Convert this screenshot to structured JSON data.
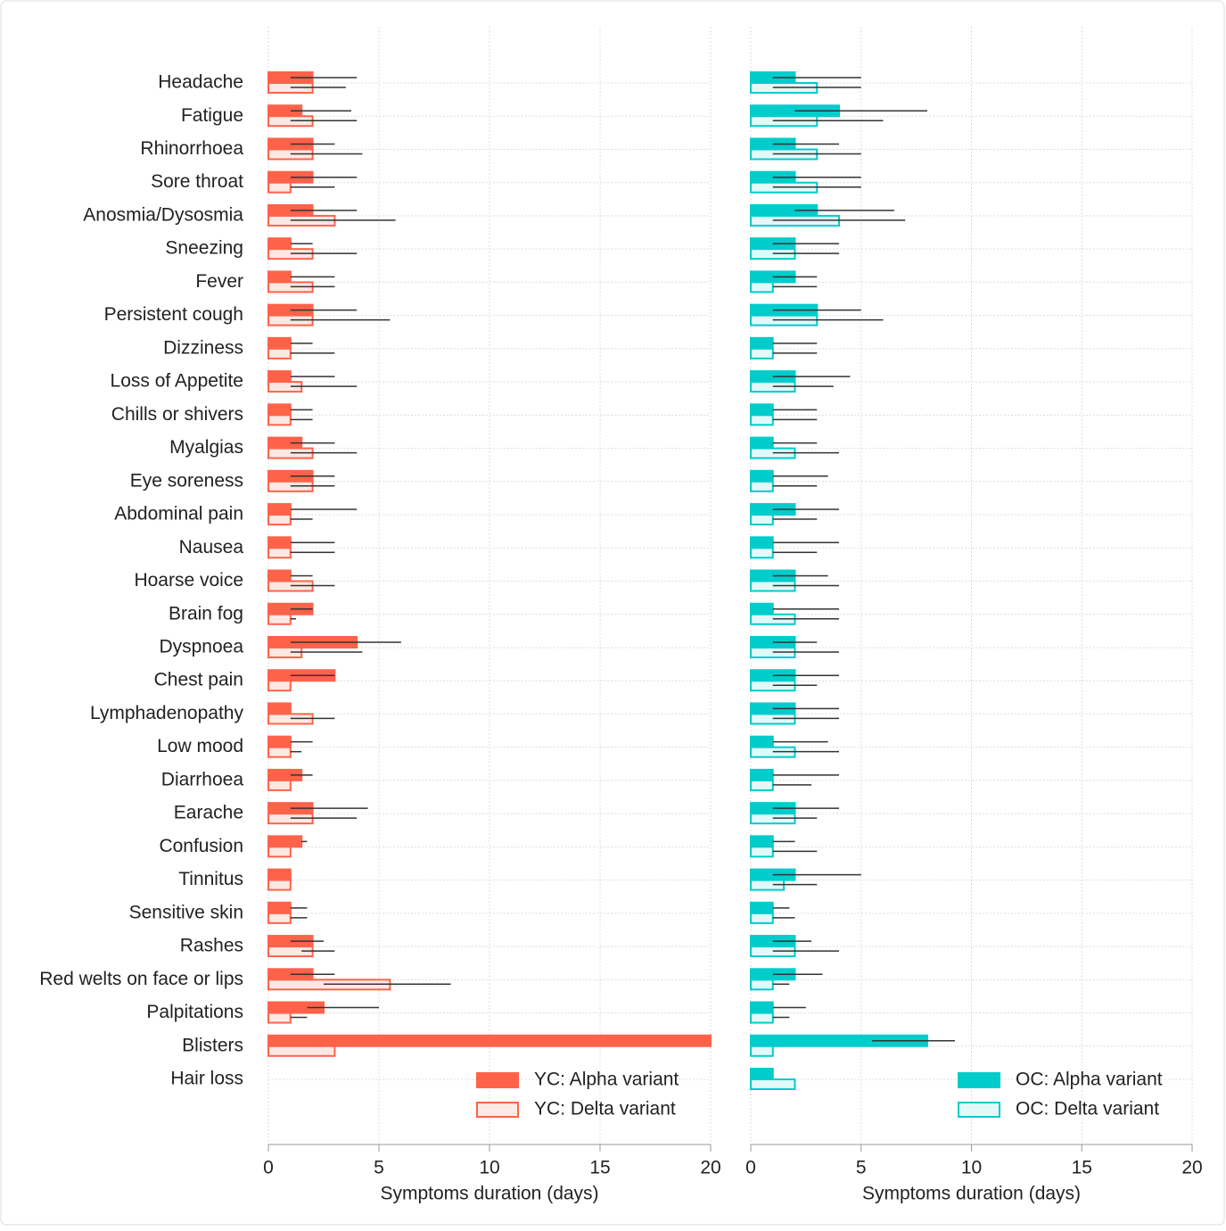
{
  "chart_data": [
    {
      "type": "bar",
      "orientation": "horizontal",
      "xlabel": "Symptoms duration (days)",
      "categories": [
        "Headache",
        "Fatigue",
        "Rhinorrhoea",
        "Sore throat",
        "Anosmia/Dysosmia",
        "Sneezing",
        "Fever",
        "Persistent cough",
        "Dizziness",
        "Loss of Appetite",
        "Chills or shivers",
        "Myalgias",
        "Eye soreness",
        "Abdominal pain",
        "Nausea",
        "Hoarse voice",
        "Brain fog",
        "Dyspnoea",
        "Chest pain",
        "Lymphadenopathy",
        "Low mood",
        "Diarrhoea",
        "Earache",
        "Confusion",
        "Tinnitus",
        "Sensitive skin",
        "Rashes",
        "Red welts on face or lips",
        "Palpitations",
        "Blisters",
        "Hair loss"
      ],
      "xlim": [
        0,
        20
      ],
      "xticks": [
        0,
        5,
        10,
        15,
        20
      ],
      "grid": true,
      "legend": "lower right",
      "series": [
        {
          "name": "YC: Alpha variant",
          "color": "#fe634a",
          "fill": "#fe634a",
          "values": [
            2,
            1.5,
            2,
            2,
            2,
            1,
            1,
            2,
            1,
            1,
            1,
            1.5,
            2,
            1,
            1,
            1,
            2,
            4,
            3,
            1,
            1,
            1.5,
            2,
            1.5,
            1,
            1,
            2,
            2,
            2.5,
            20,
            null
          ],
          "err_low": [
            1,
            1,
            1,
            1,
            1,
            1,
            1,
            1,
            1,
            1,
            1,
            1,
            1,
            1,
            1,
            1,
            1,
            1,
            1,
            1,
            1,
            1,
            1,
            1.5,
            1,
            1,
            1,
            1,
            1.75,
            20,
            null
          ],
          "err_high": [
            4,
            3.75,
            3,
            4,
            4,
            2,
            3,
            4,
            2,
            3,
            2,
            3,
            3,
            4,
            3,
            2,
            2,
            6,
            3,
            1,
            2,
            2,
            4.5,
            1.75,
            1,
            1.75,
            2.5,
            3,
            5,
            20,
            null
          ]
        },
        {
          "name": "YC: Delta variant",
          "color": "#fe634a",
          "fill": "#fde8e3",
          "values": [
            2,
            2,
            2,
            1,
            3,
            2,
            2,
            2,
            1,
            1.5,
            1,
            2,
            2,
            1,
            1,
            2,
            1,
            1.5,
            1,
            2,
            1,
            1,
            2,
            1,
            1,
            1,
            2,
            5.5,
            1,
            3,
            null
          ],
          "err_low": [
            1,
            1,
            1,
            1,
            1,
            1,
            1,
            1,
            1,
            1,
            1,
            1,
            1,
            1,
            1,
            1,
            1,
            1,
            1,
            1,
            1,
            1,
            1,
            1,
            1,
            1,
            1.5,
            2.5,
            1,
            3,
            null
          ],
          "err_high": [
            3.5,
            4,
            4.25,
            3,
            5.75,
            4,
            3,
            5.5,
            3,
            4,
            2,
            4,
            3,
            2,
            3,
            3,
            1.25,
            4.25,
            1,
            3,
            1.5,
            1,
            4,
            1,
            1,
            1.75,
            3,
            8.25,
            1.75,
            3,
            null
          ]
        }
      ]
    },
    {
      "type": "bar",
      "orientation": "horizontal",
      "xlabel": "Symptoms duration (days)",
      "xlim": [
        0,
        20
      ],
      "xticks": [
        0,
        5,
        10,
        15,
        20
      ],
      "grid": true,
      "legend": "lower right",
      "series": [
        {
          "name": "OC: Alpha variant",
          "color": "#00cccc",
          "fill": "#00cccc",
          "values": [
            2,
            4,
            2,
            2,
            3,
            2,
            2,
            3,
            1,
            2,
            1,
            1,
            1,
            2,
            1,
            2,
            1,
            2,
            2,
            2,
            1,
            1,
            2,
            1,
            2,
            1,
            2,
            2,
            1,
            8,
            1
          ],
          "err_low": [
            1,
            2,
            1,
            1,
            2,
            1,
            1,
            1,
            1,
            1,
            1,
            1,
            1,
            1,
            1,
            1,
            1,
            1,
            1,
            1,
            1,
            1,
            1,
            1,
            1,
            1,
            1,
            1,
            1,
            5.5,
            1
          ],
          "err_high": [
            5,
            8,
            4,
            5,
            6.5,
            4,
            3,
            5,
            3,
            4.5,
            3,
            3,
            3.5,
            4,
            4,
            3.5,
            4,
            3,
            4,
            4,
            3.5,
            4,
            4,
            2,
            5,
            1.75,
            2.75,
            3.25,
            2.5,
            9.25,
            1
          ]
        },
        {
          "name": "OC: Delta variant",
          "color": "#00cccc",
          "fill": "#e0fafa",
          "values": [
            3,
            3,
            3,
            3,
            4,
            2,
            1,
            3,
            1,
            2,
            1,
            2,
            1,
            1,
            1,
            2,
            2,
            2,
            2,
            2,
            2,
            1,
            2,
            1,
            1.5,
            1,
            2,
            1,
            1,
            1,
            2
          ],
          "err_low": [
            1,
            1,
            1,
            1,
            1,
            1,
            1,
            1,
            1,
            1,
            1,
            1,
            1,
            1,
            1,
            1,
            1,
            1,
            1,
            1,
            1,
            1,
            1,
            1,
            1,
            1,
            1,
            1,
            1,
            1,
            2
          ],
          "err_high": [
            5,
            6,
            5,
            5,
            7,
            4,
            3,
            6,
            3,
            3.75,
            3,
            4,
            3,
            3,
            3,
            4,
            4,
            4,
            3,
            4,
            4,
            2.75,
            3,
            3,
            3,
            2,
            4,
            1.75,
            1.75,
            1,
            2
          ]
        }
      ]
    }
  ]
}
